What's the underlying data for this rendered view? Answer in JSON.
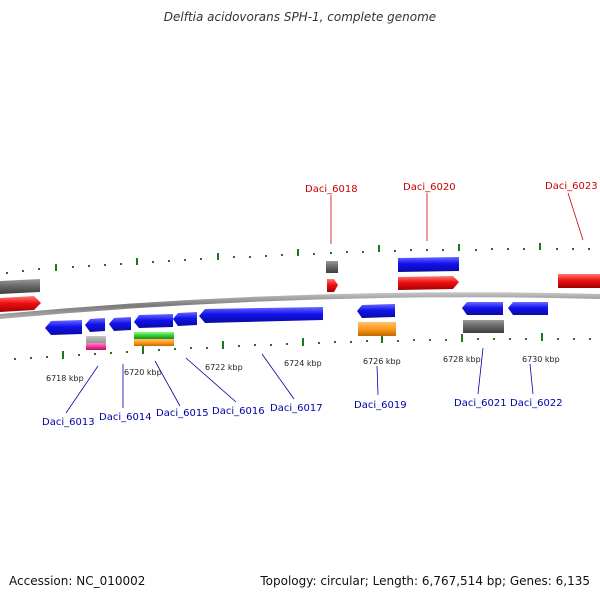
{
  "title": "Delftia acidovorans SPH-1, complete genome",
  "footer": {
    "accession": "Accession: NC_010002",
    "topology": "Topology: circular; Length: 6,767,514 bp; Genes: 6,135"
  },
  "scale_labels": [
    "6718 kbp",
    "6720 kbp",
    "6722 kbp",
    "6724 kbp",
    "6726 kbp",
    "6728 kbp",
    "6730 kbp"
  ],
  "genes_top": [
    {
      "name": "Daci_6018",
      "color": "#cc0000"
    },
    {
      "name": "Daci_6020",
      "color": "#cc0000"
    },
    {
      "name": "Daci_6023",
      "color": "#cc0000"
    }
  ],
  "genes_bottom": [
    {
      "name": "Daci_6013",
      "color": "#0000aa"
    },
    {
      "name": "Daci_6014",
      "color": "#0000aa"
    },
    {
      "name": "Daci_6015",
      "color": "#0000aa"
    },
    {
      "name": "Daci_6016",
      "color": "#0000aa"
    },
    {
      "name": "Daci_6017",
      "color": "#0000aa"
    },
    {
      "name": "Daci_6019",
      "color": "#0000aa"
    },
    {
      "name": "Daci_6021",
      "color": "#0000aa"
    },
    {
      "name": "Daci_6022",
      "color": "#0000aa"
    }
  ],
  "colors": {
    "cds_blue": "#1515ee",
    "gene_red": "#ee1111",
    "rrna_grey": "#6a6a6a",
    "backbone": "#888888",
    "tick_green": "#1a7a1a",
    "orange": "#ff9a1a",
    "green": "#33cc33",
    "pink": "#ff3399"
  }
}
